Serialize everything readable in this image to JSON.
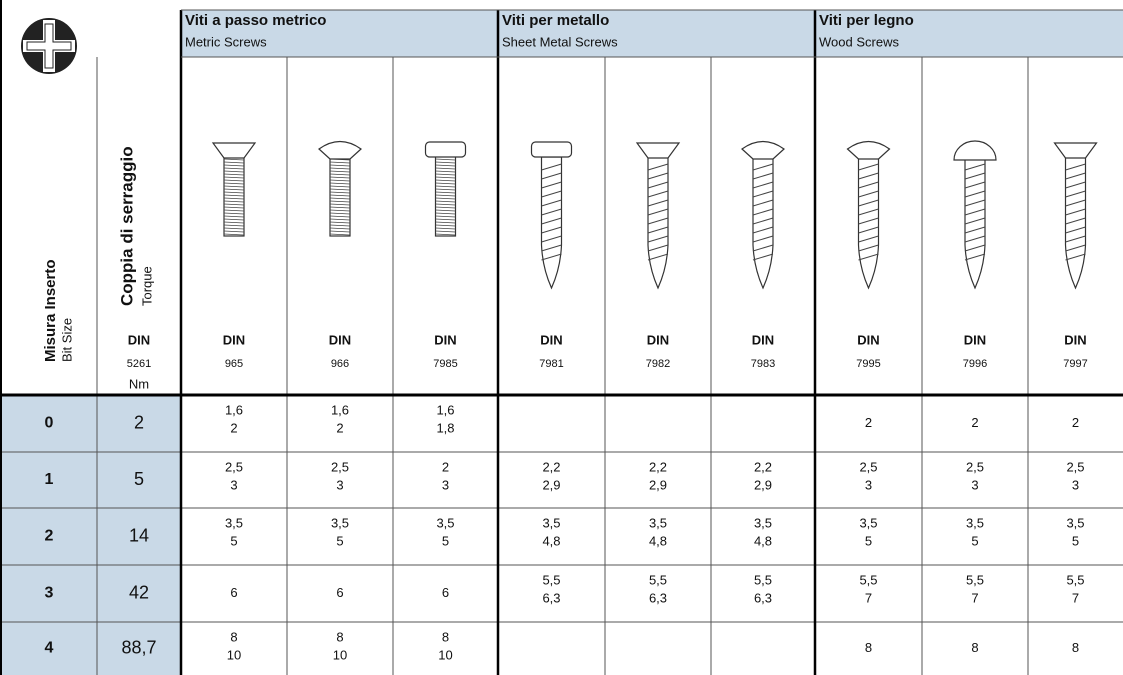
{
  "header": {
    "bit_size": {
      "title": "Misura Inserto",
      "subtitle": "Bit Size"
    },
    "torque": {
      "title": "Coppia di serraggio",
      "subtitle": "Torque",
      "din": "DIN",
      "din_number": "5261",
      "unit": "Nm"
    },
    "groups": [
      {
        "title": "Viti a passo metrico",
        "subtitle": "Metric Screws"
      },
      {
        "title": "Viti per metallo",
        "subtitle": "Sheet Metal Screws"
      },
      {
        "title": "Viti per legno",
        "subtitle": "Wood Screws"
      }
    ],
    "screws": [
      {
        "din": "DIN",
        "number": "965"
      },
      {
        "din": "DIN",
        "number": "966"
      },
      {
        "din": "DIN",
        "number": "7985"
      },
      {
        "din": "DIN",
        "number": "7981"
      },
      {
        "din": "DIN",
        "number": "7982"
      },
      {
        "din": "DIN",
        "number": "7983"
      },
      {
        "din": "DIN",
        "number": "7995"
      },
      {
        "din": "DIN",
        "number": "7996"
      },
      {
        "din": "DIN",
        "number": "7997"
      }
    ]
  },
  "rows": [
    {
      "bit": "0",
      "torque": "2",
      "cells": [
        [
          "1,6",
          "2"
        ],
        [
          "1,6",
          "2"
        ],
        [
          "1,6",
          "1,8"
        ],
        [],
        [],
        [],
        [
          "2"
        ],
        [
          "2"
        ],
        [
          "2"
        ]
      ]
    },
    {
      "bit": "1",
      "torque": "5",
      "cells": [
        [
          "2,5",
          "3"
        ],
        [
          "2,5",
          "3"
        ],
        [
          "2",
          "3"
        ],
        [
          "2,2",
          "2,9"
        ],
        [
          "2,2",
          "2,9"
        ],
        [
          "2,2",
          "2,9"
        ],
        [
          "2,5",
          "3"
        ],
        [
          "2,5",
          "3"
        ],
        [
          "2,5",
          "3"
        ]
      ]
    },
    {
      "bit": "2",
      "torque": "14",
      "cells": [
        [
          "3,5",
          "5"
        ],
        [
          "3,5",
          "5"
        ],
        [
          "3,5",
          "5"
        ],
        [
          "3,5",
          "4,8"
        ],
        [
          "3,5",
          "4,8"
        ],
        [
          "3,5",
          "4,8"
        ],
        [
          "3,5",
          "5"
        ],
        [
          "3,5",
          "5"
        ],
        [
          "3,5",
          "5"
        ]
      ]
    },
    {
      "bit": "3",
      "torque": "42",
      "cells": [
        [
          "6"
        ],
        [
          "6"
        ],
        [
          "6"
        ],
        [
          "5,5",
          "6,3"
        ],
        [
          "5,5",
          "6,3"
        ],
        [
          "5,5",
          "6,3"
        ],
        [
          "5,5",
          "7"
        ],
        [
          "5,5",
          "7"
        ],
        [
          "5,5",
          "7"
        ]
      ]
    },
    {
      "bit": "4",
      "torque": "88,7",
      "cells": [
        [
          "8",
          "10"
        ],
        [
          "8",
          "10"
        ],
        [
          "8",
          "10"
        ],
        [],
        [],
        [],
        [
          "8"
        ],
        [
          "8"
        ],
        [
          "8"
        ]
      ]
    }
  ]
}
